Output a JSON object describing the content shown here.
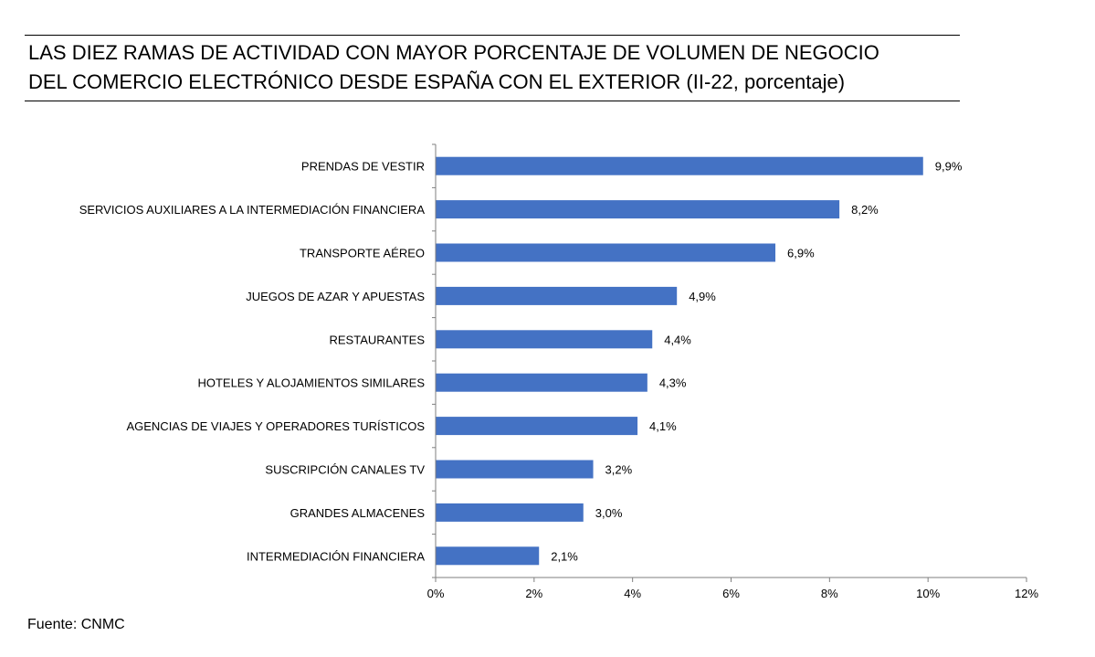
{
  "title": {
    "line1": "LAS DIEZ RAMAS DE ACTIVIDAD CON MAYOR PORCENTAJE DE VOLUMEN DE NEGOCIO",
    "line2": "DEL COMERCIO ELECTRÓNICO DESDE ESPAÑA CON EL EXTERIOR (II-22, porcentaje)"
  },
  "source": "Fuente: CNMC",
  "chart_data": {
    "type": "bar",
    "orientation": "horizontal",
    "categories": [
      "PRENDAS DE VESTIR",
      "SERVICIOS AUXILIARES A LA INTERMEDIACIÓN FINANCIERA",
      "TRANSPORTE AÉREO",
      "JUEGOS DE AZAR Y APUESTAS",
      "RESTAURANTES",
      "HOTELES  Y ALOJAMIENTOS SIMILARES",
      "AGENCIAS DE VIAJES Y OPERADORES TURÍSTICOS",
      "SUSCRIPCIÓN CANALES TV",
      "GRANDES ALMACENES",
      "INTERMEDIACIÓN FINANCIERA"
    ],
    "values": [
      9.9,
      8.2,
      6.9,
      4.9,
      4.4,
      4.3,
      4.1,
      3.2,
      3.0,
      2.1
    ],
    "value_labels": [
      "9,9%",
      "8,2%",
      "6,9%",
      "4,9%",
      "4,4%",
      "4,3%",
      "4,1%",
      "3,2%",
      "3,0%",
      "2,1%"
    ],
    "xlim": [
      0,
      12
    ],
    "xticks": [
      0,
      2,
      4,
      6,
      8,
      10,
      12
    ],
    "xtick_labels": [
      "0%",
      "2%",
      "4%",
      "6%",
      "8%",
      "10%",
      "12%"
    ],
    "bar_color": "#4472C4",
    "grid": false,
    "legend": false
  }
}
